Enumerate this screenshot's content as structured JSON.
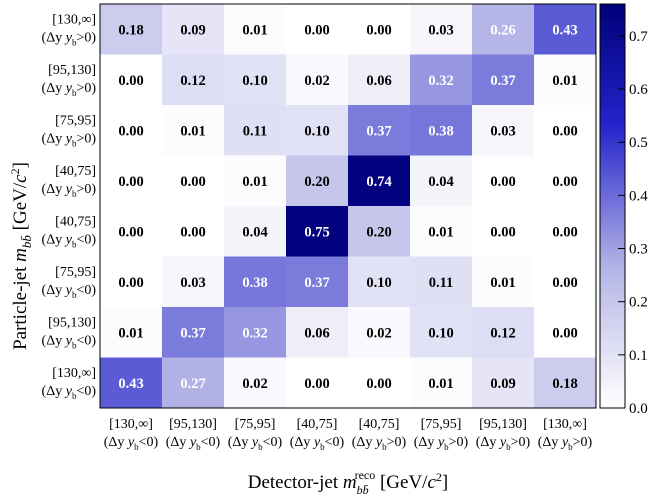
{
  "chart_data": {
    "type": "heatmap",
    "x_categories": [
      {
        "range": "[130,∞]",
        "sign": "<0"
      },
      {
        "range": "[95,130]",
        "sign": "<0"
      },
      {
        "range": "[75,95]",
        "sign": "<0"
      },
      {
        "range": "[40,75]",
        "sign": "<0"
      },
      {
        "range": "[40,75]",
        "sign": ">0"
      },
      {
        "range": "[75,95]",
        "sign": ">0"
      },
      {
        "range": "[95,130]",
        "sign": ">0"
      },
      {
        "range": "[130,∞]",
        "sign": ">0"
      }
    ],
    "y_categories": [
      {
        "range": "[130,∞]",
        "sign": ">0"
      },
      {
        "range": "[95,130]",
        "sign": ">0"
      },
      {
        "range": "[75,95]",
        "sign": ">0"
      },
      {
        "range": "[40,75]",
        "sign": ">0"
      },
      {
        "range": "[40,75]",
        "sign": "<0"
      },
      {
        "range": "[75,95]",
        "sign": "<0"
      },
      {
        "range": "[95,130]",
        "sign": "<0"
      },
      {
        "range": "[130,∞]",
        "sign": "<0"
      }
    ],
    "values": [
      [
        "0.18",
        "0.09",
        "0.01",
        "0.00",
        "0.00",
        "0.03",
        "0.26",
        "0.43"
      ],
      [
        "0.00",
        "0.12",
        "0.10",
        "0.02",
        "0.06",
        "0.32",
        "0.37",
        "0.01"
      ],
      [
        "0.00",
        "0.01",
        "0.11",
        "0.10",
        "0.37",
        "0.38",
        "0.03",
        "0.00"
      ],
      [
        "0.00",
        "0.00",
        "0.01",
        "0.20",
        "0.74",
        "0.04",
        "0.00",
        "0.00"
      ],
      [
        "0.00",
        "0.00",
        "0.04",
        "0.75",
        "0.20",
        "0.01",
        "0.00",
        "0.00"
      ],
      [
        "0.00",
        "0.03",
        "0.38",
        "0.37",
        "0.10",
        "0.11",
        "0.01",
        "0.00"
      ],
      [
        "0.01",
        "0.37",
        "0.32",
        "0.06",
        "0.02",
        "0.10",
        "0.12",
        "0.00"
      ],
      [
        "0.43",
        "0.27",
        "0.02",
        "0.00",
        "0.00",
        "0.01",
        "0.09",
        "0.18"
      ]
    ],
    "colorbar": {
      "min": 0.0,
      "max": 0.76,
      "ticks": [
        "0.0",
        "0.1",
        "0.2",
        "0.3",
        "0.4",
        "0.5",
        "0.6",
        "0.7"
      ],
      "low_color": "#ffffff",
      "high_color": "#000080"
    },
    "xlabel": "Detector-jet m_bb̄^reco [GeV/c²]",
    "ylabel": "Particle-jet m_bb̄ [GeV/c²]",
    "label_prefix": "(Δy",
    "label_subscript": "b",
    "label_suffix": ")"
  }
}
